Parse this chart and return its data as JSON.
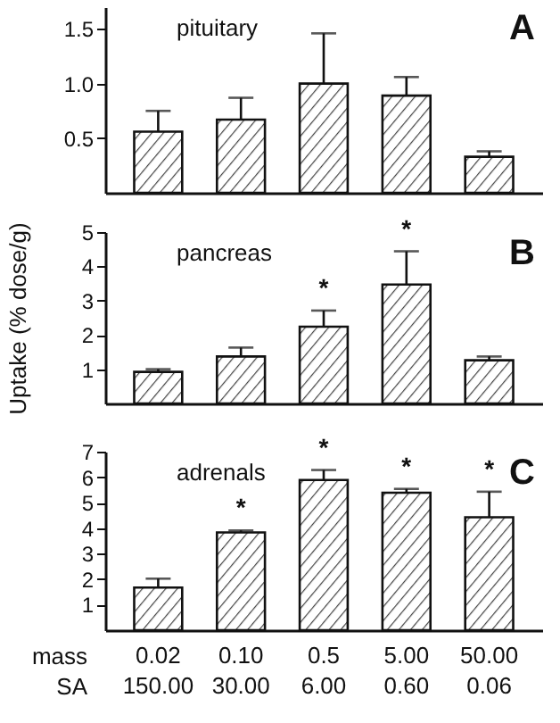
{
  "chart_data": [
    {
      "type": "bar",
      "title": "pituitary",
      "categories": [
        "0.02\n150.00",
        "0.10\n30.00",
        "0.5\n6.00",
        "5.00\n0.60",
        "50.00\n0.06"
      ],
      "values": [
        0.56,
        0.67,
        1.0,
        0.89,
        0.33
      ],
      "errors": [
        [
          0.56,
          0.75
        ],
        [
          0.67,
          0.87
        ],
        [
          1.0,
          1.46
        ],
        [
          0.89,
          1.06
        ],
        [
          0.33,
          0.38
        ]
      ],
      "ylim": [
        0,
        1.7
      ],
      "yticks": [
        {
          "value": 0.5,
          "label": "0.5"
        },
        {
          "value": 1,
          "label": "1.0"
        },
        {
          "value": 1.5,
          "label": "1.5"
        }
      ],
      "tick_labels": "y",
      "annotations": [
        "A"
      ]
    },
    {
      "type": "bar",
      "title": "pancreas",
      "ylabel": "Uptake (% dose/g)",
      "categories": [
        "0.02\n150.00",
        "0.10\n30.00",
        "0.5\n6.00",
        "5.00\n0.60",
        "50.00\n0.06"
      ],
      "values": [
        0.92,
        1.37,
        2.24,
        3.47,
        1.26
      ],
      "errors": [
        [
          0.92,
          1.0
        ],
        [
          1.37,
          1.63
        ],
        [
          2.24,
          2.71
        ],
        [
          3.47,
          4.44
        ],
        [
          1.26,
          1.37
        ]
      ],
      "ylim": [
        0,
        5
      ],
      "yticks": [
        1,
        2,
        3,
        4,
        5
      ],
      "tick_labels": "y",
      "annotations": [
        "B",
        {
          "text": "*",
          "x": "0.5\n6.00",
          "y": 2.71
        },
        {
          "text": "*",
          "x": "5.00\n0.60",
          "y": 4.44
        }
      ]
    },
    {
      "type": "bar",
      "title": "adrenals",
      "categories": [
        "0.02\n150.00",
        "0.10\n30.00",
        "0.5\n6.00",
        "5.00\n0.60",
        "50.00\n0.06"
      ],
      "values": [
        1.67,
        3.83,
        5.89,
        5.39,
        4.43
      ],
      "errors": [
        [
          1.67,
          2.02
        ],
        [
          3.83,
          3.91
        ],
        [
          5.89,
          6.28
        ],
        [
          5.39,
          5.54
        ],
        [
          4.43,
          5.43
        ]
      ],
      "ylim": [
        0,
        7
      ],
      "yticks": [
        1,
        2,
        3,
        4,
        5,
        6,
        7
      ],
      "annotations": [
        "C",
        "mass",
        "SA",
        {
          "text": "*",
          "x": "0.10\n30.00",
          "y": 3.91
        },
        {
          "text": "*",
          "x": "0.5\n6.00",
          "y": 6.28
        },
        {
          "text": "*",
          "x": "5.00\n0.60",
          "y": 5.54
        },
        {
          "text": "*",
          "x": "50.00\n0.06",
          "y": 5.43
        }
      ]
    }
  ]
}
